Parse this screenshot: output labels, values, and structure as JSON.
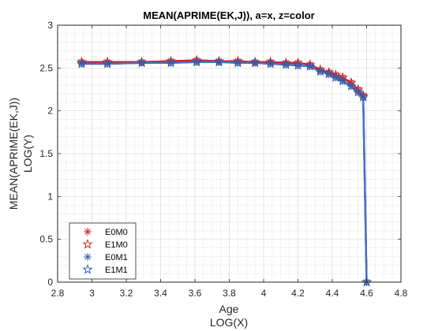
{
  "chart_data": {
    "type": "line",
    "title": "MEAN(APRIME(EK,J)), a=x, z=color",
    "xlabel": [
      "Age",
      "LOG(X)"
    ],
    "ylabel": [
      "MEAN(APRIME(EK,J))",
      "LOG(Y)"
    ],
    "xlim": [
      2.8,
      4.8
    ],
    "ylim": [
      0,
      3
    ],
    "xticks": [
      "2.8",
      "3",
      "3.2",
      "3.4",
      "3.6",
      "3.8",
      "4",
      "4.2",
      "4.4",
      "4.6",
      "4.8"
    ],
    "yticks": [
      "0",
      "0.5",
      "1",
      "1.5",
      "2",
      "2.5",
      "3"
    ],
    "grid": true,
    "minor_grid": true,
    "legend_position": "bottom-left",
    "colors": {
      "E0M0": "#d62728",
      "E1M0": "#d62728",
      "E0M1": "#3060b0",
      "E1M1": "#3060b0",
      "line_red": "#d02020",
      "line_blue": "#4472c4"
    },
    "series": [
      {
        "name": "E0M0",
        "marker": "asterisk",
        "x": [
          2.94,
          3.09,
          3.29,
          3.46,
          3.61,
          3.74,
          3.85,
          3.95,
          4.04,
          4.13,
          4.2,
          4.27,
          4.33,
          4.38,
          4.42,
          4.46,
          4.51,
          4.55,
          4.58,
          4.6
        ],
        "y": [
          2.57,
          2.57,
          2.57,
          2.58,
          2.59,
          2.58,
          2.58,
          2.57,
          2.57,
          2.56,
          2.56,
          2.54,
          2.48,
          2.45,
          2.42,
          2.39,
          2.33,
          2.25,
          2.18,
          0.0
        ]
      },
      {
        "name": "E1M0",
        "marker": "star",
        "x": [
          2.94,
          3.09,
          3.29,
          3.46,
          3.61,
          3.74,
          3.85,
          3.95,
          4.04,
          4.13,
          4.2,
          4.27,
          4.33,
          4.38,
          4.42,
          4.46,
          4.51,
          4.55,
          4.58,
          4.6
        ],
        "y": [
          2.57,
          2.57,
          2.57,
          2.58,
          2.59,
          2.58,
          2.58,
          2.57,
          2.57,
          2.56,
          2.56,
          2.54,
          2.48,
          2.45,
          2.42,
          2.39,
          2.33,
          2.25,
          2.18,
          0.0
        ]
      },
      {
        "name": "E0M1",
        "marker": "asterisk",
        "x": [
          2.94,
          3.09,
          3.29,
          3.46,
          3.61,
          3.74,
          3.85,
          3.95,
          4.04,
          4.13,
          4.2,
          4.27,
          4.33,
          4.38,
          4.42,
          4.46,
          4.51,
          4.55,
          4.58,
          4.6
        ],
        "y": [
          2.55,
          2.55,
          2.56,
          2.56,
          2.57,
          2.57,
          2.56,
          2.56,
          2.55,
          2.54,
          2.53,
          2.52,
          2.46,
          2.43,
          2.39,
          2.35,
          2.29,
          2.22,
          2.16,
          0.0
        ]
      },
      {
        "name": "E1M1",
        "marker": "star",
        "x": [
          2.94,
          3.09,
          3.29,
          3.46,
          3.61,
          3.74,
          3.85,
          3.95,
          4.04,
          4.13,
          4.2,
          4.27,
          4.33,
          4.38,
          4.42,
          4.46,
          4.51,
          4.55,
          4.58,
          4.6
        ],
        "y": [
          2.55,
          2.55,
          2.56,
          2.56,
          2.57,
          2.57,
          2.56,
          2.56,
          2.55,
          2.54,
          2.53,
          2.52,
          2.46,
          2.43,
          2.39,
          2.35,
          2.29,
          2.22,
          2.16,
          0.0
        ]
      }
    ]
  }
}
